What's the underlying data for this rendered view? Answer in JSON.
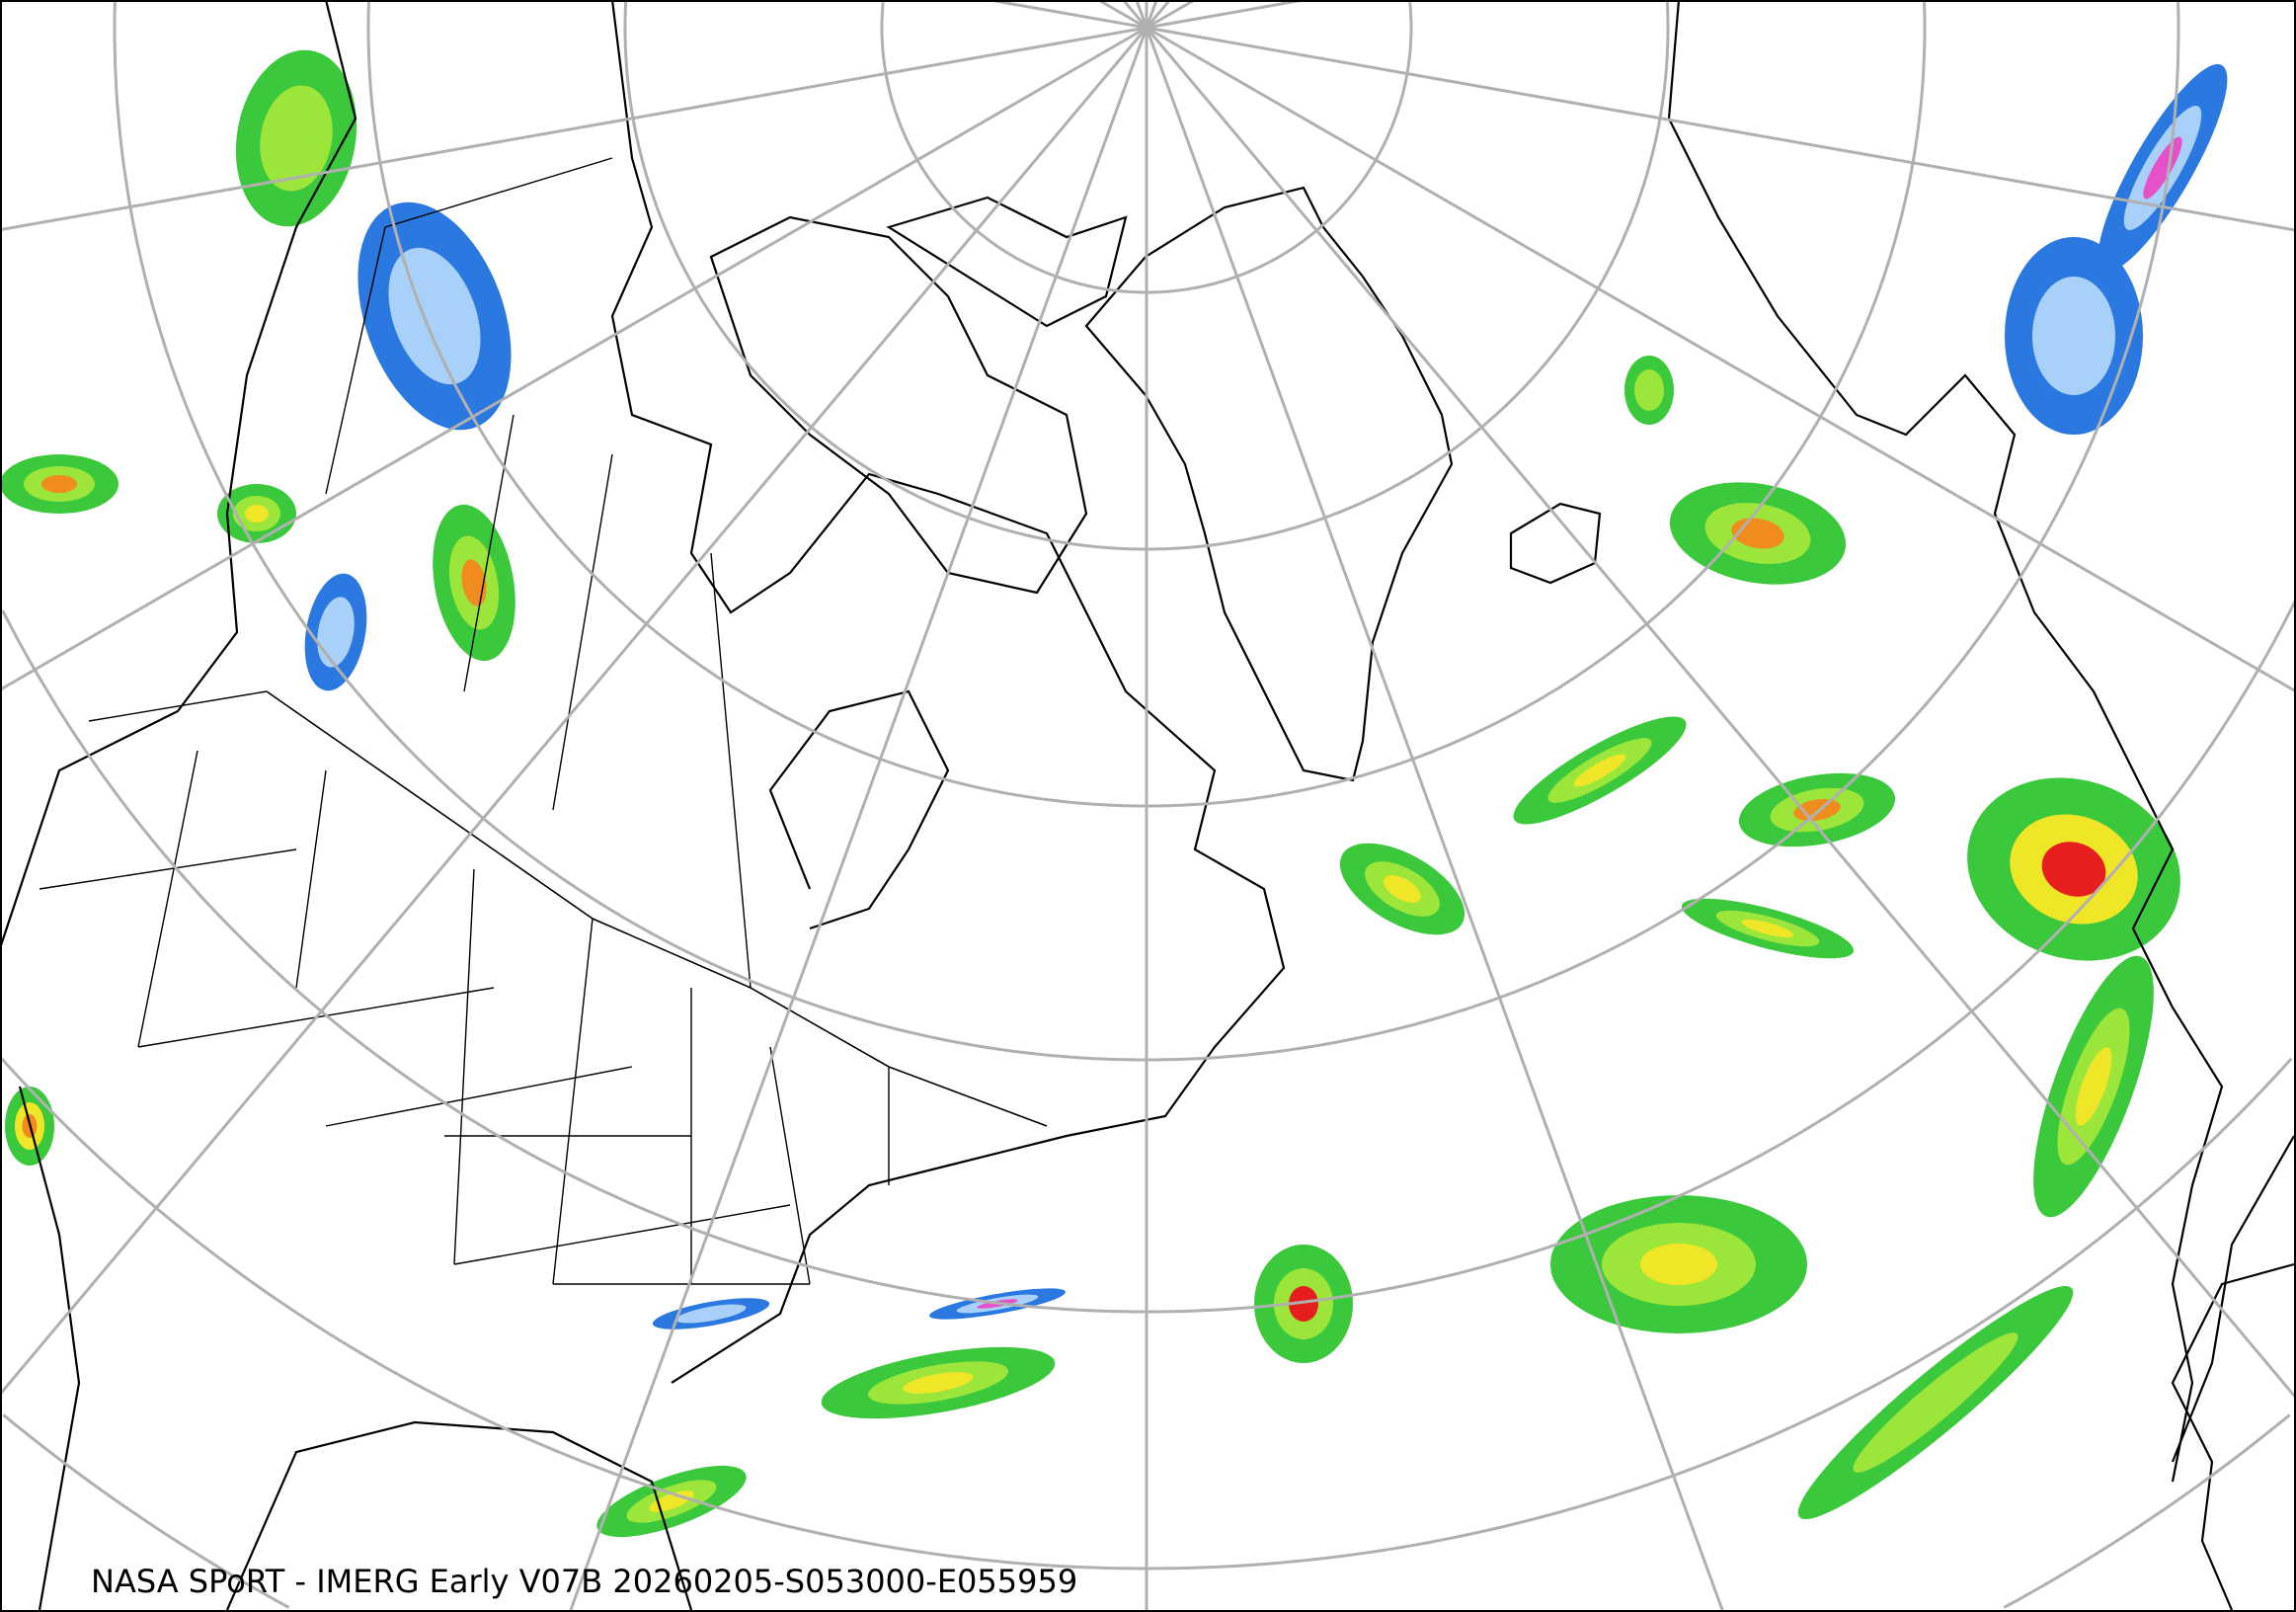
{
  "caption": "NASA SPoRT - IMERG Early V07B 20260205-S053000-E055959",
  "map": {
    "projection": "north-polar-stereographic",
    "layers": [
      "precipitation-rate",
      "coastlines",
      "state-borders",
      "country-borders",
      "graticule"
    ],
    "colors": {
      "graticule": "#b0b0b0",
      "coastline": "#000000",
      "precip_light_blue": "#a8d0f8",
      "precip_blue": "#2a78e0",
      "precip_dark_green": "#1e6e1e",
      "precip_green": "#3cc83c",
      "precip_light_green": "#9ce63c",
      "precip_yellow": "#f0e628",
      "precip_orange": "#f08c1e",
      "precip_red": "#e61e1e",
      "precip_magenta": "#e650c8"
    }
  }
}
